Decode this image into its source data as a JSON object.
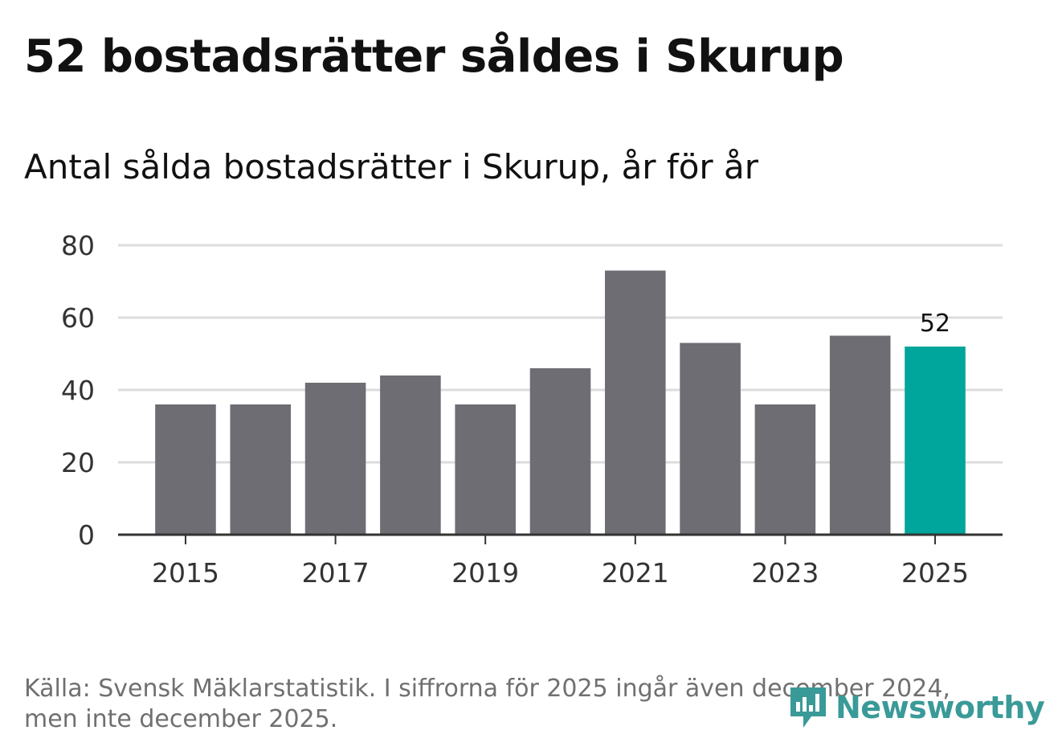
{
  "header": {
    "title": "52 bostadsrätter såldes i Skurup",
    "subtitle": "Antal sålda bostadsrätter i Skurup, år för år"
  },
  "chart_data": {
    "type": "bar",
    "title": "52 bostadsrätter såldes i Skurup",
    "subtitle": "Antal sålda bostadsrätter i Skurup, år för år",
    "categories": [
      "2015",
      "2016",
      "2017",
      "2018",
      "2019",
      "2020",
      "2021",
      "2022",
      "2023",
      "2024",
      "2025"
    ],
    "values": [
      36,
      36,
      42,
      44,
      36,
      46,
      73,
      53,
      36,
      55,
      52
    ],
    "x_tick_labels": [
      "2015",
      "2017",
      "2019",
      "2021",
      "2023",
      "2025"
    ],
    "y_ticks": [
      0,
      20,
      40,
      60,
      80
    ],
    "ylim": [
      0,
      80
    ],
    "xlabel": "",
    "ylabel": "",
    "grid": true,
    "highlight": {
      "category": "2025",
      "label": "52"
    },
    "colors": {
      "bar": "#6e6d73",
      "highlight": "#00a59b",
      "grid": "#dcdcdc",
      "axis": "#333333"
    }
  },
  "footer": {
    "source": "Källa: Svensk Mäklarstatistik. I siffrorna för 2025 ingår även december 2024, men inte december 2025.",
    "logo_text": "Newsworthy",
    "logo_color": "#3a9a98"
  }
}
